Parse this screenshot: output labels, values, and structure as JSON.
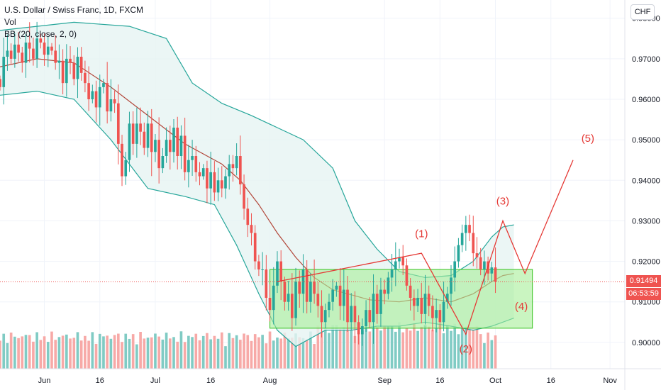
{
  "legend": {
    "symbol": "U.S. Dollar / Swiss Franc, 1D, FXCM",
    "vol": "Vol",
    "bb": "BB (20, close, 2, 0)"
  },
  "currency_button": "CHF",
  "current_price": "0.91494",
  "countdown": "06:53:59",
  "colors": {
    "up": "#26a69a",
    "down": "#ef5350",
    "vol_up": "#80cbc4",
    "vol_down": "#f7a9a7",
    "bb_band": "#26a69a",
    "bb_fill": "#e6f4f2",
    "bb_basis": "#b2473a",
    "zone_fill": "#a6ee97",
    "zone_stroke": "#35c21d",
    "wave": "#e53935"
  },
  "chart_data": {
    "type": "candlestick",
    "title": "U.S. Dollar / Swiss Franc, 1D, FXCM",
    "y_axis": {
      "ticks": [
        0.9,
        0.91,
        0.92,
        0.93,
        0.94,
        0.95,
        0.96,
        0.97,
        0.98
      ],
      "tick_labels": [
        "0.90000",
        "0.91000",
        "0.92000",
        "0.93000",
        "0.94000",
        "0.95000",
        "0.96000",
        "0.97000",
        "0.98000"
      ],
      "range": [
        0.8935,
        0.9845
      ]
    },
    "x_axis": {
      "range": [
        "2019-05-20",
        "2019-11-05"
      ],
      "ticks": [
        {
          "date": "2019-06-01",
          "label": "Jun"
        },
        {
          "date": "2019-06-16",
          "label": "16"
        },
        {
          "date": "2019-07-01",
          "label": "Jul"
        },
        {
          "date": "2019-07-16",
          "label": "16"
        },
        {
          "date": "2019-08-01",
          "label": "Aug"
        },
        {
          "date": "2019-09-01",
          "label": "Sep"
        },
        {
          "date": "2019-09-16",
          "label": "16"
        },
        {
          "date": "2019-10-01",
          "label": "Oct"
        },
        {
          "date": "2019-10-16",
          "label": "16"
        },
        {
          "date": "2019-11-01",
          "label": "Nov"
        }
      ]
    },
    "candle_start": "2019-05-20",
    "candle_closes": [
      0.963,
      0.9705,
      0.972,
      0.97,
      0.9735,
      0.9715,
      0.969,
      0.974,
      0.9725,
      0.97,
      0.975,
      0.974,
      0.971,
      0.973,
      0.972,
      0.969,
      0.9695,
      0.964,
      0.97,
      0.969,
      0.965,
      0.9705,
      0.9665,
      0.964,
      0.96,
      0.962,
      0.958,
      0.963,
      0.964,
      0.957,
      0.96,
      0.959,
      0.949,
      0.941,
      0.945,
      0.954,
      0.949,
      0.954,
      0.952,
      0.948,
      0.954,
      0.947,
      0.95,
      0.943,
      0.946,
      0.95,
      0.947,
      0.953,
      0.946,
      0.951,
      0.942,
      0.945,
      0.946,
      0.942,
      0.941,
      0.943,
      0.938,
      0.942,
      0.937,
      0.94,
      0.938,
      0.941,
      0.944,
      0.943,
      0.946,
      0.939,
      0.933,
      0.929,
      0.927,
      0.92,
      0.918,
      0.918,
      0.911,
      0.908,
      0.914,
      0.92,
      0.915,
      0.91,
      0.912,
      0.906,
      0.915,
      0.912,
      0.918,
      0.91,
      0.915,
      0.912,
      0.909,
      0.905,
      0.908,
      0.91,
      0.913,
      0.914,
      0.909,
      0.913,
      0.905,
      0.909,
      0.905,
      0.902,
      0.904,
      0.908,
      0.905,
      0.912,
      0.907,
      0.913,
      0.912,
      0.916,
      0.918,
      0.92,
      0.921,
      0.919,
      0.914,
      0.911,
      0.909,
      0.911,
      0.907,
      0.912,
      0.909,
      0.906,
      0.908,
      0.905,
      0.91,
      0.912,
      0.916,
      0.92,
      0.924,
      0.927,
      0.929,
      0.927,
      0.922,
      0.921,
      0.918,
      0.92,
      0.917,
      0.9185,
      0.915
    ],
    "bb_upper": [
      [
        0,
        0.977
      ],
      [
        20,
        0.979
      ],
      [
        35,
        0.978
      ],
      [
        45,
        0.975
      ],
      [
        52,
        0.964
      ],
      [
        60,
        0.959
      ],
      [
        68,
        0.956
      ],
      [
        75,
        0.953
      ],
      [
        82,
        0.95
      ],
      [
        90,
        0.943
      ],
      [
        96,
        0.93
      ],
      [
        102,
        0.923
      ],
      [
        108,
        0.9175
      ],
      [
        115,
        0.916
      ],
      [
        122,
        0.9165
      ],
      [
        128,
        0.92
      ],
      [
        133,
        0.926
      ],
      [
        136,
        0.9285
      ],
      [
        139,
        0.929
      ]
    ],
    "bb_basis": [
      [
        0,
        0.968
      ],
      [
        10,
        0.97
      ],
      [
        20,
        0.969
      ],
      [
        30,
        0.963
      ],
      [
        40,
        0.956
      ],
      [
        50,
        0.949
      ],
      [
        60,
        0.944
      ],
      [
        65,
        0.94
      ],
      [
        70,
        0.934
      ],
      [
        75,
        0.927
      ],
      [
        80,
        0.921
      ],
      [
        85,
        0.916
      ],
      [
        90,
        0.913
      ],
      [
        100,
        0.9105
      ],
      [
        108,
        0.91
      ],
      [
        115,
        0.911
      ],
      [
        122,
        0.91
      ],
      [
        128,
        0.912
      ],
      [
        133,
        0.915
      ],
      [
        136,
        0.9165
      ],
      [
        139,
        0.917
      ]
    ],
    "bb_lower": [
      [
        0,
        0.961
      ],
      [
        10,
        0.962
      ],
      [
        20,
        0.96
      ],
      [
        30,
        0.95
      ],
      [
        40,
        0.938
      ],
      [
        50,
        0.936
      ],
      [
        58,
        0.934
      ],
      [
        64,
        0.924
      ],
      [
        70,
        0.912
      ],
      [
        75,
        0.903
      ],
      [
        80,
        0.899
      ],
      [
        88,
        0.903
      ],
      [
        95,
        0.903
      ],
      [
        102,
        0.904
      ],
      [
        108,
        0.904
      ],
      [
        115,
        0.905
      ],
      [
        122,
        0.904
      ],
      [
        128,
        0.903
      ],
      [
        133,
        0.904
      ],
      [
        136,
        0.905
      ],
      [
        139,
        0.906
      ]
    ],
    "zone": {
      "from": "2019-08-01",
      "to": "2019-10-11",
      "top": 0.918,
      "bottom": 0.9035
    },
    "elliott_wave": {
      "points": [
        [
          75,
          0.915
        ],
        [
          114,
          0.922
        ],
        [
          126,
          0.902
        ],
        [
          136,
          0.93
        ],
        [
          142,
          0.917
        ],
        [
          155,
          0.945
        ]
      ],
      "labels": [
        {
          "text": "(1)",
          "i": 114,
          "price": 0.926
        },
        {
          "text": "(2)",
          "i": 126,
          "price": 0.8975
        },
        {
          "text": "(3)",
          "i": 136,
          "price": 0.934
        },
        {
          "text": "(4)",
          "i": 141,
          "price": 0.908
        },
        {
          "text": "(5)",
          "i": 159,
          "price": 0.9495
        }
      ]
    },
    "volume": {
      "min": 0,
      "max": 1
    }
  }
}
